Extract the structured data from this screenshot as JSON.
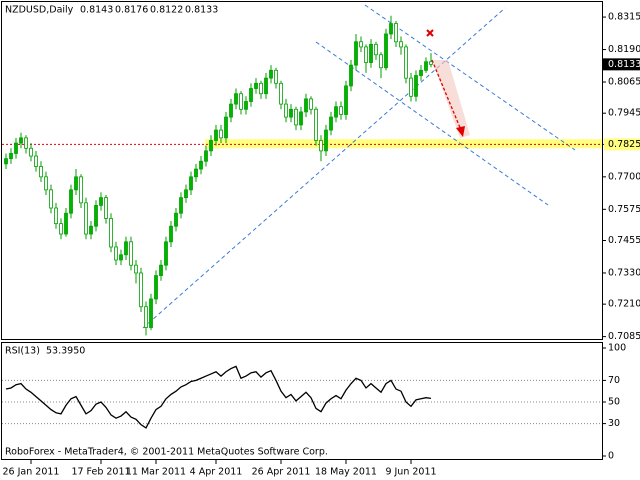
{
  "chart_data": [
    {
      "type": "candlestick",
      "symbol": "NZDUSD,Daily",
      "up_color": "#00b400",
      "down_color": "#ffffff",
      "wick_color": "#00a000",
      "categories": [
        null,
        null,
        null,
        null,
        null,
        "26 Jan 2011",
        null,
        null,
        null,
        null,
        null,
        null,
        null,
        null,
        null,
        null,
        null,
        null,
        null,
        "17 Feb 2011",
        null,
        null,
        null,
        null,
        null,
        null,
        null,
        null,
        null,
        null,
        "11 Mar 2011",
        null,
        null,
        null,
        null,
        null,
        null,
        null,
        null,
        null,
        null,
        null,
        "4 Apr 2011",
        null,
        null,
        null,
        null,
        null,
        null,
        null,
        null,
        null,
        null,
        null,
        null,
        "26 Apr 2011",
        null,
        null,
        null,
        null,
        null,
        null,
        null,
        null,
        null,
        null,
        null,
        null,
        "18 May 2011",
        null,
        null,
        null,
        null,
        null,
        null,
        null,
        null,
        null,
        null,
        null,
        null,
        "9 Jun 2011",
        null,
        null,
        null,
        null
      ],
      "open": [
        0.775,
        0.777,
        0.779,
        0.783,
        0.785,
        0.781,
        0.778,
        0.774,
        0.77,
        0.765,
        0.758,
        0.752,
        0.748,
        0.756,
        0.765,
        0.77,
        0.76,
        0.748,
        0.751,
        0.759,
        0.762,
        0.754,
        0.743,
        0.738,
        0.74,
        0.745,
        0.736,
        0.733,
        0.72,
        0.712,
        0.723,
        0.732,
        0.736,
        0.745,
        0.751,
        0.756,
        0.762,
        0.765,
        0.77,
        0.773,
        0.776,
        0.78,
        0.784,
        0.788,
        0.785,
        0.793,
        0.798,
        0.802,
        0.796,
        0.799,
        0.804,
        0.806,
        0.802,
        0.808,
        0.811,
        0.806,
        0.798,
        0.793,
        0.796,
        0.79,
        0.795,
        0.8,
        0.796,
        0.784,
        0.78,
        0.788,
        0.793,
        0.797,
        0.794,
        0.805,
        0.813,
        0.822,
        0.82,
        0.814,
        0.821,
        0.817,
        0.812,
        0.825,
        0.829,
        0.822,
        0.82,
        0.808,
        0.801,
        0.809,
        0.811,
        0.8143
      ],
      "high": [
        0.779,
        0.781,
        0.785,
        0.787,
        0.786,
        0.783,
        0.78,
        0.776,
        0.772,
        0.767,
        0.76,
        0.754,
        0.758,
        0.767,
        0.773,
        0.771,
        0.762,
        0.753,
        0.761,
        0.764,
        0.763,
        0.756,
        0.745,
        0.742,
        0.747,
        0.747,
        0.738,
        0.735,
        0.722,
        0.725,
        0.734,
        0.738,
        0.747,
        0.753,
        0.758,
        0.764,
        0.767,
        0.772,
        0.775,
        0.778,
        0.782,
        0.786,
        0.79,
        0.79,
        0.795,
        0.8,
        0.804,
        0.803,
        0.801,
        0.806,
        0.808,
        0.807,
        0.81,
        0.813,
        0.812,
        0.807,
        0.8,
        0.798,
        0.797,
        0.797,
        0.802,
        0.801,
        0.797,
        0.786,
        0.79,
        0.795,
        0.799,
        0.799,
        0.807,
        0.815,
        0.825,
        0.824,
        0.821,
        0.823,
        0.822,
        0.818,
        0.827,
        0.832,
        0.83,
        0.824,
        0.821,
        0.81,
        0.811,
        0.813,
        0.816,
        0.8176
      ],
      "low": [
        0.773,
        0.775,
        0.777,
        0.781,
        0.779,
        0.776,
        0.772,
        0.768,
        0.763,
        0.756,
        0.75,
        0.746,
        0.747,
        0.754,
        0.763,
        0.758,
        0.746,
        0.746,
        0.749,
        0.757,
        0.752,
        0.741,
        0.736,
        0.736,
        0.738,
        0.734,
        0.729,
        0.718,
        0.709,
        0.711,
        0.721,
        0.73,
        0.734,
        0.743,
        0.749,
        0.754,
        0.76,
        0.763,
        0.768,
        0.771,
        0.774,
        0.778,
        0.782,
        0.783,
        0.783,
        0.791,
        0.796,
        0.794,
        0.794,
        0.797,
        0.802,
        0.8,
        0.8,
        0.806,
        0.804,
        0.796,
        0.791,
        0.791,
        0.788,
        0.788,
        0.793,
        0.794,
        0.782,
        0.776,
        0.778,
        0.786,
        0.791,
        0.792,
        0.792,
        0.803,
        0.811,
        0.818,
        0.81,
        0.812,
        0.815,
        0.808,
        0.811,
        0.823,
        0.82,
        0.817,
        0.806,
        0.799,
        0.799,
        0.807,
        0.81,
        0.8122
      ],
      "close": [
        0.777,
        0.779,
        0.783,
        0.785,
        0.781,
        0.778,
        0.774,
        0.77,
        0.765,
        0.758,
        0.752,
        0.748,
        0.756,
        0.765,
        0.77,
        0.76,
        0.748,
        0.751,
        0.759,
        0.762,
        0.754,
        0.743,
        0.738,
        0.74,
        0.745,
        0.736,
        0.733,
        0.72,
        0.712,
        0.723,
        0.732,
        0.736,
        0.745,
        0.751,
        0.756,
        0.762,
        0.765,
        0.77,
        0.773,
        0.776,
        0.78,
        0.784,
        0.788,
        0.785,
        0.793,
        0.798,
        0.802,
        0.796,
        0.799,
        0.804,
        0.806,
        0.802,
        0.808,
        0.811,
        0.806,
        0.798,
        0.793,
        0.796,
        0.79,
        0.795,
        0.8,
        0.796,
        0.784,
        0.78,
        0.788,
        0.793,
        0.797,
        0.794,
        0.805,
        0.813,
        0.822,
        0.82,
        0.814,
        0.821,
        0.817,
        0.812,
        0.825,
        0.829,
        0.822,
        0.82,
        0.808,
        0.801,
        0.809,
        0.811,
        0.8143,
        0.8133
      ],
      "ylim": [
        0.7072,
        0.8373
      ],
      "yticks": [
        0.8315,
        {
          "value": 0.819,
          "label": "0.8190"
        },
        0.8065,
        0.7945,
        0.7825,
        {
          "value": 0.77,
          "label": "0.7700"
        },
        0.7575,
        0.7455,
        {
          "value": 0.733,
          "label": "0.7330"
        },
        {
          "value": 0.721,
          "label": "0.7210"
        },
        0.7085
      ],
      "level": 0.7825,
      "level_color": "#e00000",
      "zone": [
        0.781,
        0.7845
      ],
      "zone_color": "#ffff80"
    },
    {
      "type": "line",
      "name": "RSI(13)",
      "last_label": "53.3950",
      "color": "#000000",
      "values": [
        62,
        63,
        66,
        67,
        62,
        59,
        55,
        51,
        47,
        43,
        40,
        39,
        47,
        53,
        55,
        47,
        39,
        42,
        48,
        50,
        45,
        38,
        35,
        37,
        41,
        36,
        34,
        29,
        26,
        35,
        43,
        46,
        53,
        57,
        60,
        64,
        66,
        69,
        70,
        72,
        74,
        76,
        78,
        74,
        78,
        81,
        83,
        72,
        74,
        77,
        78,
        73,
        77,
        79,
        70,
        60,
        54,
        57,
        51,
        55,
        59,
        54,
        44,
        41,
        49,
        53,
        56,
        53,
        61,
        67,
        72,
        70,
        63,
        67,
        63,
        59,
        67,
        70,
        62,
        60,
        50,
        46,
        52,
        53,
        54,
        53.395
      ],
      "ylim": [
        0,
        100
      ],
      "yticks": [
        100,
        70,
        50,
        30,
        0
      ],
      "levels": [
        70,
        50,
        30
      ],
      "footer": "RoboForex - MetaTrader4, © 2001-2011 MetaQuotes Software Corp."
    }
  ]
}
